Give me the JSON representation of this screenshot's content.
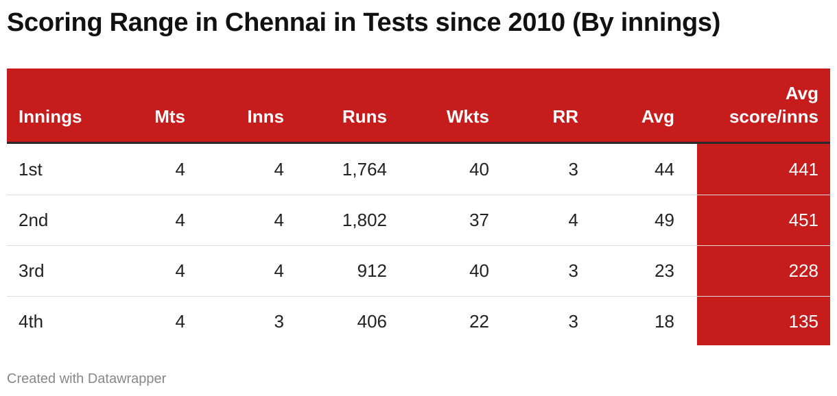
{
  "title": "Scoring Range in Chennai in Tests since 2010 (By innings)",
  "table": {
    "header": [
      "Innings",
      "Mts",
      "Inns",
      "Runs",
      "Wkts",
      "RR",
      "Avg",
      "Avg score/inns"
    ],
    "rows": [
      [
        "1st",
        "4",
        "4",
        "1,764",
        "40",
        "3",
        "44",
        "441"
      ],
      [
        "2nd",
        "4",
        "4",
        "1,802",
        "37",
        "4",
        "49",
        "451"
      ],
      [
        "3rd",
        "4",
        "4",
        "912",
        "40",
        "3",
        "23",
        "228"
      ],
      [
        "4th",
        "4",
        "3",
        "406",
        "22",
        "3",
        "18",
        "135"
      ]
    ]
  },
  "footer": "Created with Datawrapper"
}
